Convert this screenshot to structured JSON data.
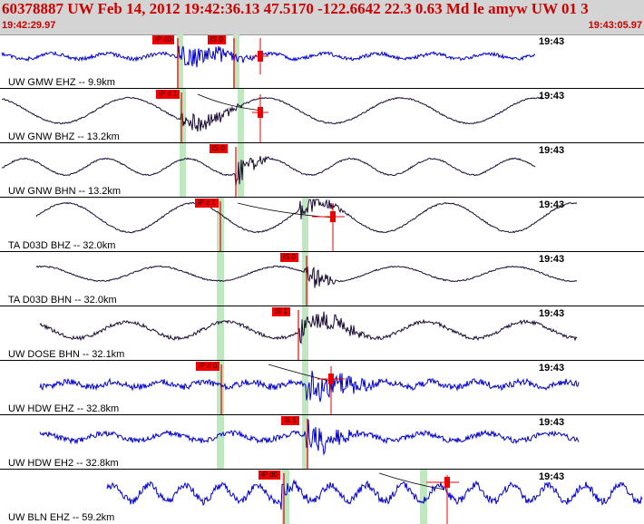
{
  "header": {
    "event_line": "60378887 UW Feb 14, 2012 19:42:36.13   47.5170 -122.6642 22.3 0.63 Md le amyw UW 01   3",
    "start_time": "19:42:29.97",
    "end_time": "19:43:05.97"
  },
  "colors": {
    "header_text": "#cc0000",
    "blue_trace": "#0000cc",
    "dark_trace": "#1a0a33",
    "pick": "#ee0000",
    "window": "#bfe8c0"
  },
  "panels": [
    {
      "label": "UW GMW EHZ -- 9.9km",
      "clock": "19:43",
      "color": "blue",
      "picks": [
        "iP d0",
        "iS 0"
      ]
    },
    {
      "label": "UW GNW BHZ -- 13.2km",
      "clock": "19:43",
      "color": "dark",
      "picks": [
        "iP d 1"
      ]
    },
    {
      "label": "UW GNW BHN -- 13.2km",
      "clock": "19:43",
      "color": "dark",
      "picks": [
        "iS 0"
      ]
    },
    {
      "label": "TA D03D BHZ -- 32.0km",
      "clock": "19:43",
      "color": "dark",
      "picks": [
        "iP c 1"
      ]
    },
    {
      "label": "TA D03D BHN -- 32.0km",
      "clock": "19:43",
      "color": "dark",
      "picks": [
        "iS 0"
      ]
    },
    {
      "label": "UW DOSE BHN -- 32.1km",
      "clock": "19:43",
      "color": "dark",
      "picks": [
        "iS 1"
      ]
    },
    {
      "label": "UW HDW EHZ -- 32.8km",
      "clock": "19:43",
      "color": "blue",
      "picks": [
        "iP d 0"
      ]
    },
    {
      "label": "UW HDW EH2 -- 32.8km",
      "clock": "19:43",
      "color": "blue",
      "picks": [
        "iS 1"
      ]
    },
    {
      "label": "UW BLN EHZ -- 59.2km",
      "clock": "19:43",
      "color": "blue",
      "picks": [
        "iP d0"
      ]
    }
  ]
}
